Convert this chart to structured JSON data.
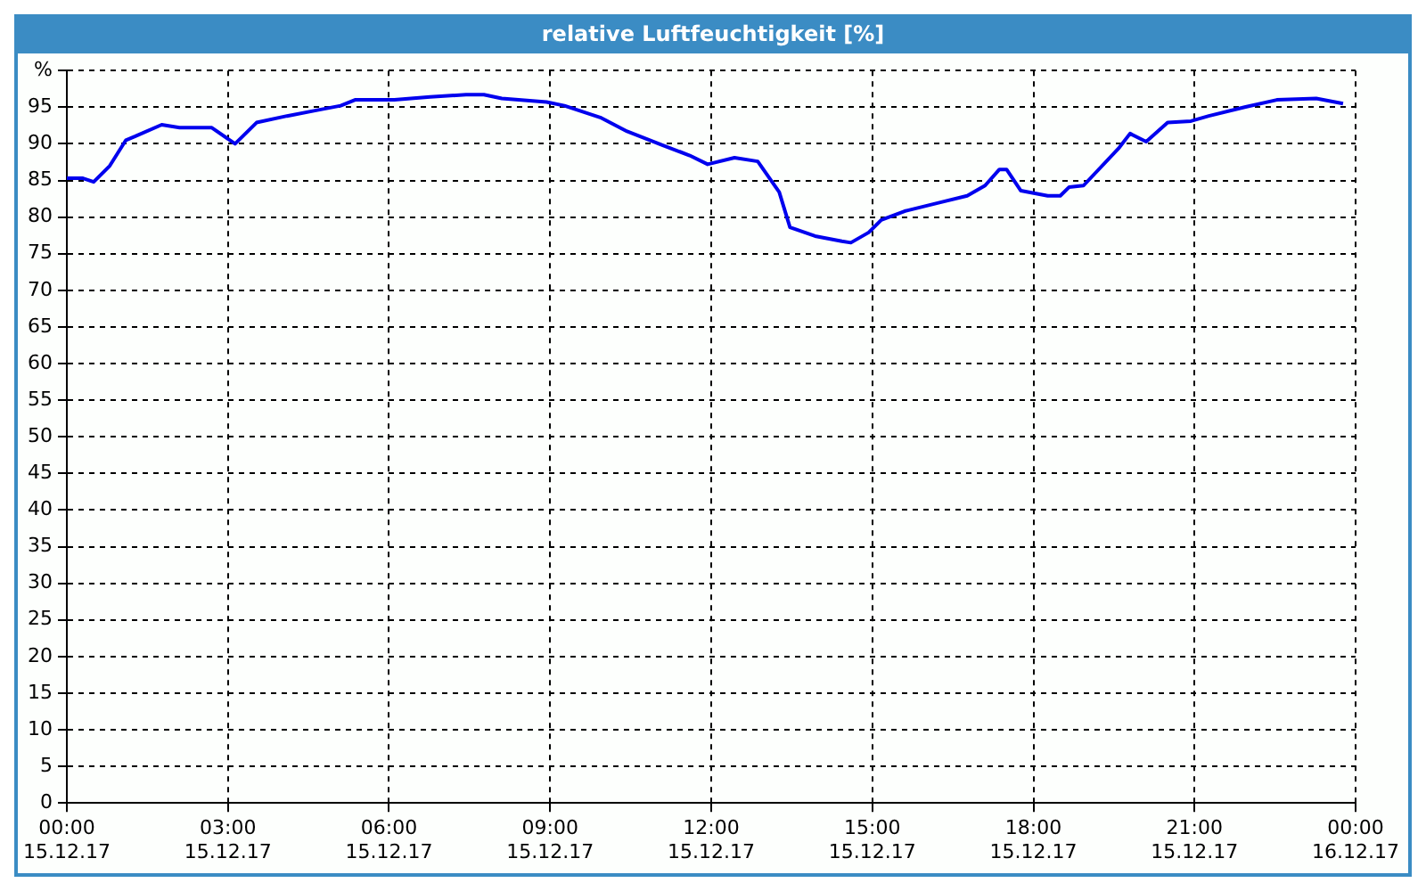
{
  "chart_data": {
    "type": "line",
    "title": "relative Luftfeuchtigkeit [%]",
    "x": [
      "--12-15T00:00",
      "--12-15T00:18",
      "--12-15T00:30",
      "--12-15T00:48",
      "--12-15T01:06",
      "--12-15T01:16",
      "--12-15T01:46",
      "--12-15T02:06",
      "--12-15T02:42",
      "--12-15T03:08",
      "--12-15T03:32",
      "--12-15T04:06",
      "--12-15T04:36",
      "--12-15T05:06",
      "--12-15T05:22",
      "--12-15T06:06",
      "--12-15T06:46",
      "--12-15T07:26",
      "--12-15T07:46",
      "--12-15T08:06",
      "--12-15T08:56",
      "--12-15T09:16",
      "--12-15T09:56",
      "--12-15T10:26",
      "--12-15T11:06",
      "--12-15T11:36",
      "--12-15T11:56",
      "--12-15T12:26",
      "--12-15T12:52",
      "--12-15T13:16",
      "--12-15T13:28",
      "--12-15T13:56",
      "--12-15T14:26",
      "--12-15T14:36",
      "--12-15T14:56",
      "--12-15T15:10",
      "--12-15T15:36",
      "--12-15T16:16",
      "--12-15T16:46",
      "--12-15T17:06",
      "--12-15T17:22",
      "--12-15T17:30",
      "--12-15T17:46",
      "--12-15T18:16",
      "--12-15T18:30",
      "--12-15T18:40",
      "--12-15T18:56",
      "--12-15T19:36",
      "--12-15T19:48",
      "--12-15T20:06",
      "--12-15T20:30",
      "--12-15T20:56",
      "--12-15T21:16",
      "--12-15T21:56",
      "--12-15T22:32",
      "--12-15T23:16",
      "--12-15T23:46"
    ],
    "series": [
      {
        "color": "#0000ee",
        "values": [
          85.3,
          85.3,
          84.8,
          87,
          90.5,
          91,
          92.6,
          92.2,
          92.2,
          90,
          92.9,
          93.8,
          94.5,
          95.2,
          96,
          96,
          96.4,
          96.7,
          96.7,
          96.2,
          95.7,
          95.2,
          93.6,
          91.7,
          89.8,
          88.4,
          87.2,
          88.1,
          87.6,
          83.4,
          78.6,
          77.4,
          76.7,
          76.5,
          77.9,
          79.6,
          80.8,
          82,
          82.9,
          84.3,
          86.5,
          86.5,
          83.6,
          82.9,
          82.9,
          84.1,
          84.3,
          89.5,
          91.4,
          90.3,
          92.9,
          93.1,
          93.8,
          95,
          96,
          96.2,
          95.5
        ]
      }
    ],
    "xlim": [
      "--12-15T00:00",
      "--12-16T00:00"
    ],
    "xticks": [
      {
        "value": "--12-15T00:00",
        "label": "00:00 15.12.17"
      },
      {
        "value": "--12-15T03:00",
        "label": "03:00 15.12.17"
      },
      {
        "value": "--12-15T06:00",
        "label": "06:00 15.12.17"
      },
      {
        "value": "--12-15T09:00",
        "label": "09:00 15.12.17"
      },
      {
        "value": "--12-15T12:00",
        "label": "12:00 15.12.17"
      },
      {
        "value": "--12-15T15:00",
        "label": "15:00 15.12.17"
      },
      {
        "value": "--12-15T18:00",
        "label": "18:00 15.12.17"
      },
      {
        "value": "--12-15T21:00",
        "label": "21:00 15.12.17"
      },
      {
        "value": "--12-16T00:00",
        "label": "00:00 16.12.17"
      }
    ],
    "ylim": [
      0,
      100
    ],
    "yticks": [
      0,
      5,
      10,
      15,
      20,
      25,
      30,
      35,
      40,
      45,
      50,
      55,
      60,
      65,
      70,
      75,
      80,
      85,
      90,
      95,
      {
        "value": 100,
        "label": "%"
      }
    ],
    "grid": true,
    "legend": false,
    "marker": "none",
    "line_style": "solid"
  }
}
